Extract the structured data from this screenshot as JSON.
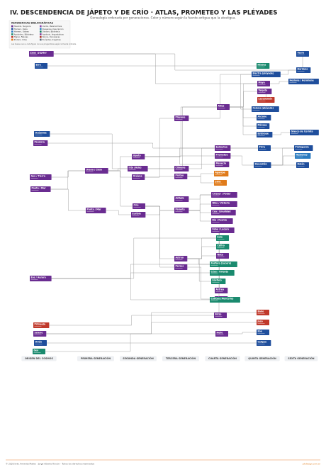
{
  "header": {
    "title": "IV. DESCENDENCIA DE JÁPETO Y DE CRÍO · ATLAS, PROMETEO Y LAS PLÉYADES",
    "subtitle": "Genealogía ordenada por generaciones. Color y número según la fuente antigua que la atestigua."
  },
  "legend": {
    "title": "REFERENCIAS BIBLIOGRÁFICAS",
    "items": [
      {
        "label": "Hesíodo, Teogonía",
        "color": "#6a2c91"
      },
      {
        "label": "Homero, Ilíada",
        "color": "#1f4e9c"
      },
      {
        "label": "Homero, Odisea",
        "color": "#2a7bc0"
      },
      {
        "label": "Apolodoro, Biblioteca",
        "color": "#1a8a6e"
      },
      {
        "label": "Higino, Fábulas",
        "color": "#c0392b"
      },
      {
        "label": "Píndaro, Odas",
        "color": "#e07b1a"
      },
      {
        "label": "Ovidio, Metamorfosis",
        "color": "#8e44ad"
      },
      {
        "label": "Pausanias, Descripción",
        "color": "#2e86c1"
      },
      {
        "label": "Diodoro, Biblioteca",
        "color": "#117a65"
      },
      {
        "label": "Apolonio, Argonáuticas",
        "color": "#7d3c98"
      },
      {
        "label": "Nonno, Dionisíacas",
        "color": "#b03a2e"
      },
      {
        "label": "Eurípides, tragedias",
        "color": "#5d6d7e"
      }
    ],
    "note": "Las líneas unen a cada figura con sus progenitores según la fuente indicada."
  },
  "nodes": [
    {
      "label": "Zeus / Júpiter",
      "color": "#6a2c91"
    },
    {
      "label": "Etra",
      "color": "#1f4e9c"
    },
    {
      "label": "Tauro",
      "color": "#1f4e9c"
    },
    {
      "label": "Híades",
      "color": "#1a8a6e"
    },
    {
      "label": "Hardano",
      "color": "#1f4e9c"
    },
    {
      "label": "Electra (pléyade)",
      "color": "#1f4e9c"
    },
    {
      "label": "Hesione / Hermione",
      "color": "#1f4e9c"
    },
    {
      "label": "Maya",
      "color": "#6a2c91"
    },
    {
      "label": "Taigete",
      "color": "#6a2c91"
    },
    {
      "label": "Lacedemón",
      "color": "#c0392b"
    },
    {
      "label": "Atlas",
      "color": "#6a2c91"
    },
    {
      "label": "Celeno (pléyade)",
      "color": "#1f4e9c"
    },
    {
      "label": "Pléyone",
      "color": "#6a2c91"
    },
    {
      "label": "Alcíone",
      "color": "#1f4e9c"
    },
    {
      "label": "Mérope",
      "color": "#1f4e9c"
    },
    {
      "label": "Estérope",
      "color": "#1f4e9c"
    },
    {
      "label": "Glauco de Corinto",
      "color": "#1f4e9c"
    },
    {
      "label": "Océanide",
      "color": "#1f4e9c"
    },
    {
      "label": "Pandora",
      "color": "#6a2c91"
    },
    {
      "label": "Pirra",
      "color": "#1f4e9c"
    },
    {
      "label": "Epimeteo",
      "color": "#6a2c91"
    },
    {
      "label": "Prometeo",
      "color": "#6a2c91"
    },
    {
      "label": "Deucalión",
      "color": "#1f4e9c"
    },
    {
      "label": "Protogenia",
      "color": "#1f4e9c"
    },
    {
      "label": "Hesioneo",
      "color": "#2a7bc0"
    },
    {
      "label": "Helén",
      "color": "#1f4e9c"
    },
    {
      "label": "Jápeto",
      "color": "#6a2c91"
    },
    {
      "label": "Ixta (Asia)",
      "color": "#6a2c91"
    },
    {
      "label": "Urano / Cielo",
      "color": "#6a2c91"
    },
    {
      "label": "Climene",
      "color": "#6a2c91"
    },
    {
      "label": "Océano",
      "color": "#6a2c91"
    },
    {
      "label": "Proteo",
      "color": "#6a2c91"
    },
    {
      "label": "Gea / Tierra",
      "color": "#6a2c91"
    },
    {
      "label": "Menecio",
      "color": "#6a2c91"
    },
    {
      "label": "Aganipe",
      "color": "#e07b1a"
    },
    {
      "label": "Sirio",
      "color": "#e07b1a"
    },
    {
      "label": "Ponto / Mar",
      "color": "#6a2c91"
    },
    {
      "label": "Astigia",
      "color": "#6a2c91"
    },
    {
      "label": "Crisaor / Poder",
      "color": "#6a2c91"
    },
    {
      "label": "Nike / Victoria",
      "color": "#6a2c91"
    },
    {
      "label": "Crío",
      "color": "#6a2c91"
    },
    {
      "label": "Ponto / Mar",
      "color": "#6a2c91"
    },
    {
      "label": "Palante",
      "color": "#6a2c91"
    },
    {
      "label": "Cea / Emulidad",
      "color": "#6a2c91"
    },
    {
      "label": "Euribia",
      "color": "#6a2c91"
    },
    {
      "label": "Bía / Fuerza",
      "color": "#6a2c91"
    },
    {
      "label": "Febe / Lucero",
      "color": "#6a2c91"
    },
    {
      "label": "Eolo",
      "color": "#1a8a6e"
    },
    {
      "label": "Céfiro",
      "color": "#1a8a6e"
    },
    {
      "label": "Noto",
      "color": "#6a2c91"
    },
    {
      "label": "Astreo",
      "color": "#6a2c91"
    },
    {
      "label": "Perses",
      "color": "#6a2c91"
    },
    {
      "label": "Fósforo (Lucero)",
      "color": "#1a8a6e"
    },
    {
      "label": "Céos / Oriente",
      "color": "#1a8a6e"
    },
    {
      "label": "Eos / Aurora",
      "color": "#6a2c91"
    },
    {
      "label": "Eósforo",
      "color": "#1a8a6e"
    },
    {
      "label": "Astrea",
      "color": "#6a2c91"
    },
    {
      "label": "Hécate",
      "color": "#6a2c91"
    },
    {
      "label": "Catiteo (Mercurio)",
      "color": "#1a8a6e"
    },
    {
      "label": "Brizo",
      "color": "#6a2c91"
    },
    {
      "label": "Baño",
      "color": "#c0392b"
    },
    {
      "label": "Jaso",
      "color": "#c0392b"
    },
    {
      "label": "Primeeja",
      "color": "#c0392b"
    },
    {
      "label": "Selene",
      "color": "#6a2c91"
    },
    {
      "label": "Helio",
      "color": "#6a2c91"
    },
    {
      "label": "Eóo",
      "color": "#1f4e9c"
    },
    {
      "label": "Orión",
      "color": "#1f4e9c"
    },
    {
      "label": "Calipso",
      "color": "#1f4e9c"
    },
    {
      "label": "Gea",
      "color": "#1a8a6e"
    }
  ],
  "columns": [
    "ORIGEN DEL COSMOS",
    "PRIMERA GENERACIÓN",
    "SEGUNDA GENERACIÓN",
    "TERCERA GENERACIÓN",
    "CUARTA GENERACIÓN",
    "QUINTA GENERACIÓN",
    "SEXTA GENERACIÓN"
  ],
  "footer": {
    "credit": "© 2026 Inés Armenta Mateo · Jorge Alberto Rincón · Todos los derechos reservados",
    "site": "pkdesign.com.ar"
  }
}
